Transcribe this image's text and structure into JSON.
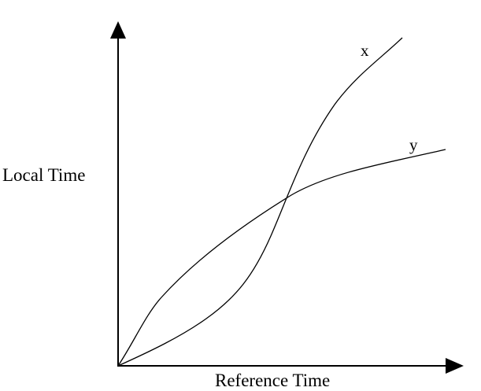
{
  "diagram": {
    "x_axis_label": "Reference Time",
    "y_axis_label": "Local Time",
    "curves": [
      {
        "id": "x",
        "label": "x"
      },
      {
        "id": "y",
        "label": "y"
      }
    ],
    "colors": {
      "line": "#000000",
      "background": "#ffffff"
    }
  }
}
